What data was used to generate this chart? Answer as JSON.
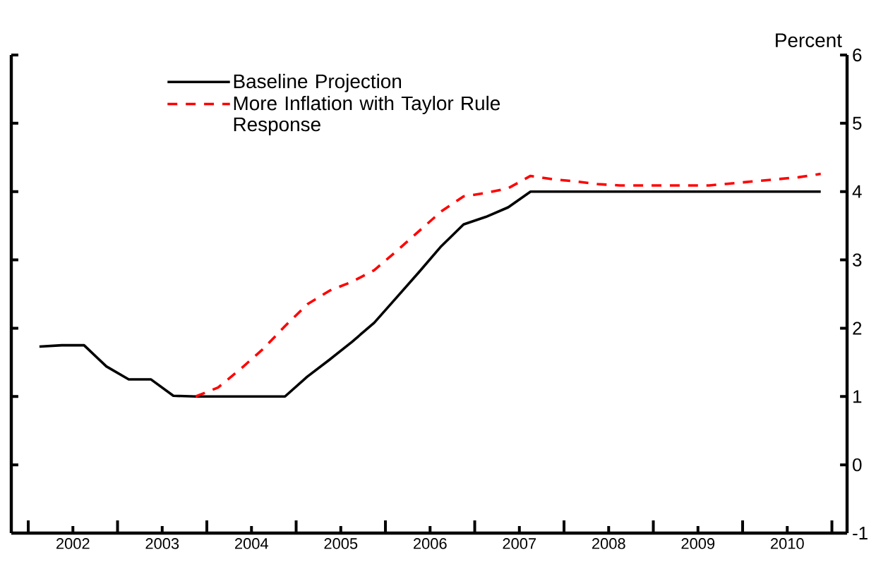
{
  "chart_data": {
    "type": "line",
    "ylabel": "Percent",
    "x": [
      2002.125,
      2002.375,
      2002.625,
      2002.875,
      2003.125,
      2003.375,
      2003.625,
      2003.875,
      2004.125,
      2004.375,
      2004.625,
      2004.875,
      2005.125,
      2005.375,
      2005.625,
      2005.875,
      2006.125,
      2006.375,
      2006.625,
      2006.875,
      2007.125,
      2007.375,
      2007.625,
      2007.875,
      2008.125,
      2008.375,
      2008.625,
      2008.875,
      2009.125,
      2009.375,
      2009.625,
      2009.875,
      2010.125,
      2010.375,
      2010.625,
      2010.875
    ],
    "series": [
      {
        "name": "Baseline Projection",
        "color": "#000000",
        "line_style": "solid",
        "values": [
          1.73,
          1.75,
          1.75,
          1.44,
          1.25,
          1.25,
          1.01,
          1.0,
          1.0,
          1.0,
          1.0,
          1.0,
          1.29,
          1.54,
          1.8,
          2.08,
          2.45,
          2.82,
          3.2,
          3.52,
          3.63,
          3.77,
          4.0,
          4.0,
          4.0,
          4.0,
          4.0,
          4.0,
          4.0,
          4.0,
          4.0,
          4.0,
          4.0,
          4.0,
          4.0,
          4.0
        ]
      },
      {
        "name": "More Inflation with Taylor Rule Response",
        "color": "#ff0000",
        "line_style": "dashed",
        "values": [
          null,
          null,
          null,
          null,
          null,
          null,
          null,
          1.0,
          1.13,
          1.4,
          1.69,
          2.03,
          2.35,
          2.55,
          2.68,
          2.85,
          3.13,
          3.42,
          3.71,
          3.93,
          3.98,
          4.05,
          4.23,
          4.18,
          4.15,
          4.11,
          4.09,
          4.09,
          4.09,
          4.09,
          4.09,
          4.12,
          4.15,
          4.18,
          4.21,
          4.26
        ]
      }
    ],
    "xlim": [
      2001.81,
      2011.17
    ],
    "xticks": [
      {
        "value": 2002,
        "label": null
      },
      {
        "value": 2002.5,
        "label": "2002"
      },
      {
        "value": 2003,
        "label": null
      },
      {
        "value": 2003.5,
        "label": "2003"
      },
      {
        "value": 2004,
        "label": null
      },
      {
        "value": 2004.5,
        "label": "2004"
      },
      {
        "value": 2005,
        "label": null
      },
      {
        "value": 2005.5,
        "label": "2005"
      },
      {
        "value": 2006,
        "label": null
      },
      {
        "value": 2006.5,
        "label": "2006"
      },
      {
        "value": 2007,
        "label": null
      },
      {
        "value": 2007.5,
        "label": "2007"
      },
      {
        "value": 2008,
        "label": null
      },
      {
        "value": 2008.5,
        "label": "2008"
      },
      {
        "value": 2009,
        "label": null
      },
      {
        "value": 2009.5,
        "label": "2009"
      },
      {
        "value": 2010,
        "label": null
      },
      {
        "value": 2010.5,
        "label": "2010"
      },
      {
        "value": 2011,
        "label": null
      }
    ],
    "ylim": [
      -1,
      6
    ],
    "yticks": [
      -1,
      0,
      1,
      2,
      3,
      4,
      5,
      6
    ],
    "grid": false,
    "legend": "top left",
    "marker": "none"
  }
}
